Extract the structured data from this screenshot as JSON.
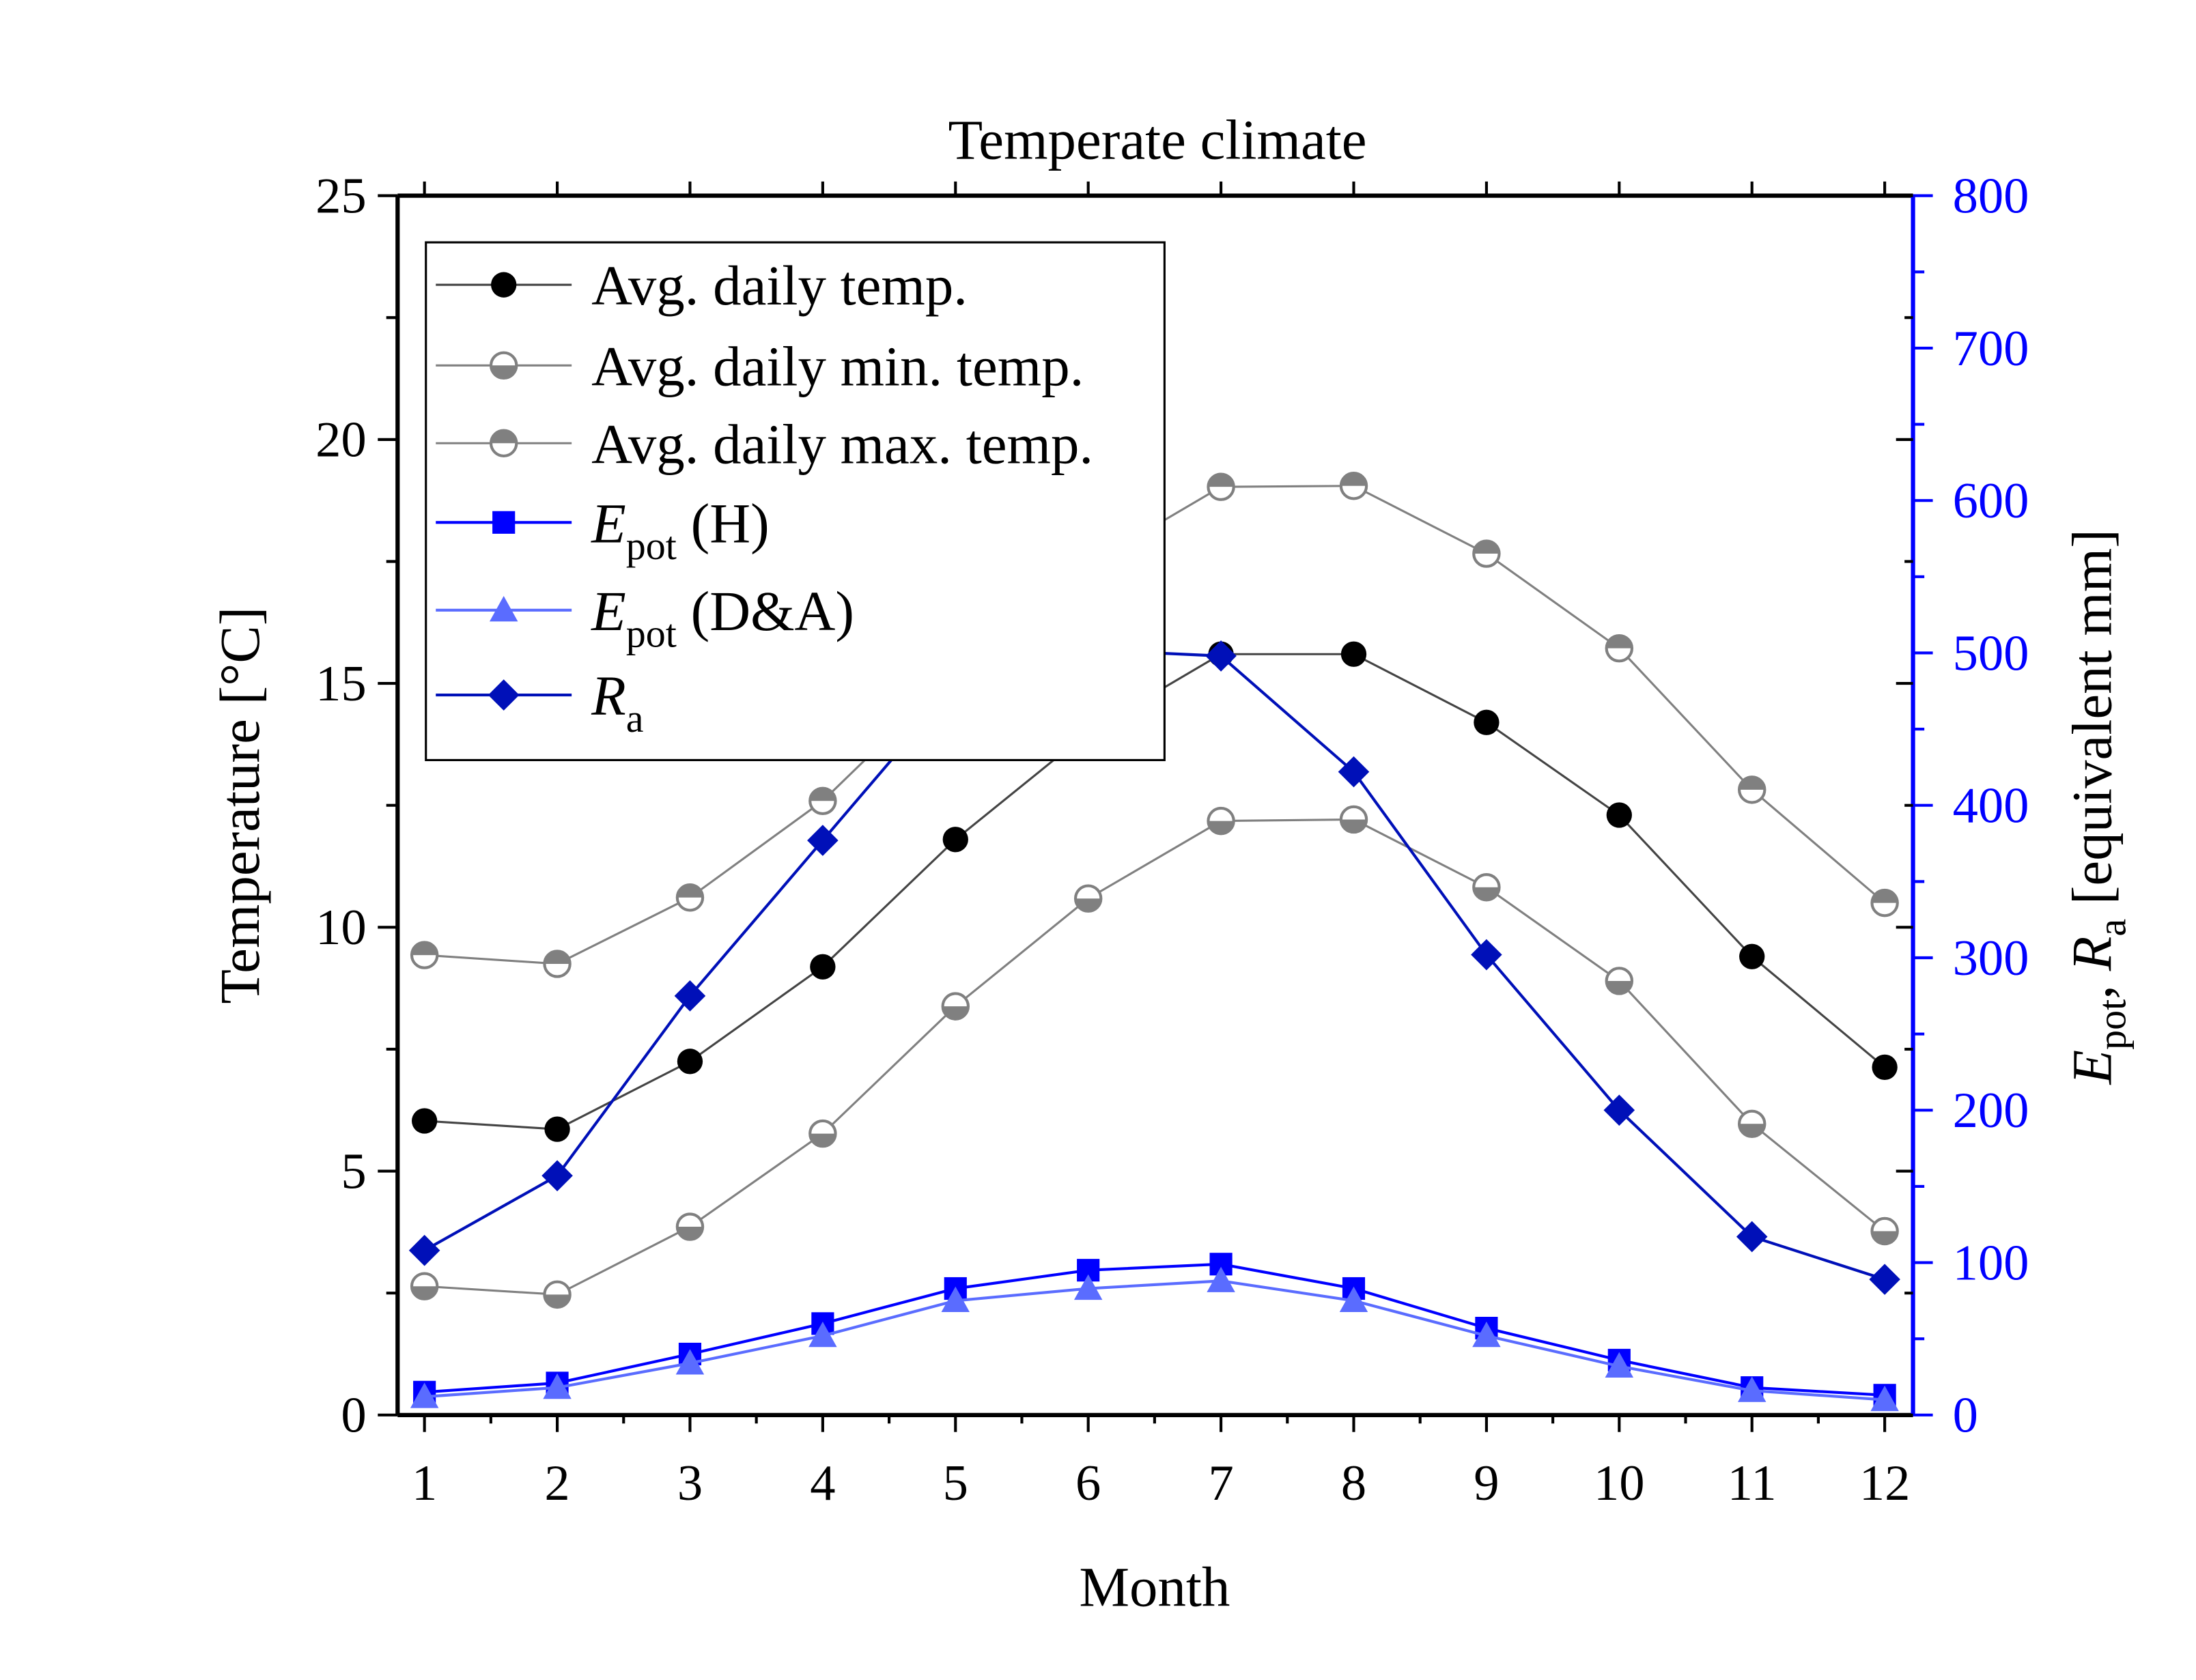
{
  "chart_data": {
    "type": "line",
    "title": "Temperate climate",
    "xlabel": "Month",
    "ylabel": "Temperature [°C]",
    "y2label": {
      "E": "E",
      "pot": "pot",
      "sep": ", ",
      "R": "R",
      "a": "a",
      "rest": " [equivalent mm]"
    },
    "x": [
      1,
      2,
      3,
      4,
      5,
      6,
      7,
      8,
      9,
      10,
      11,
      12
    ],
    "xlim": [
      0.8,
      12.2
    ],
    "ylim": [
      0,
      25
    ],
    "y2lim": [
      0,
      800
    ],
    "yticks": [
      0,
      5,
      10,
      15,
      20,
      25
    ],
    "y2ticks": [
      0,
      100,
      200,
      300,
      400,
      500,
      600,
      700,
      800
    ],
    "legend_position": "top-left",
    "colors": {
      "axis": "#000000",
      "right_axis": "#0000ff"
    },
    "series": [
      {
        "name": "Avg. daily temp.",
        "axis": "left",
        "marker": "circle-filled",
        "color": "#000000",
        "line": "#444444",
        "values": [
          6.03,
          5.86,
          7.25,
          9.19,
          11.8,
          14.0,
          15.6,
          15.6,
          14.2,
          12.3,
          9.4,
          7.13
        ]
      },
      {
        "name": "Avg. daily min. temp.",
        "axis": "left",
        "marker": "circle-half-bottom",
        "color": "#808080",
        "line": "#808080",
        "values": [
          2.64,
          2.47,
          3.86,
          5.77,
          8.38,
          10.59,
          12.18,
          12.21,
          10.82,
          8.9,
          5.97,
          3.77
        ]
      },
      {
        "name": "Avg. daily max. temp.",
        "axis": "left",
        "marker": "circle-half-top",
        "color": "#808080",
        "line": "#808080",
        "values": [
          9.43,
          9.25,
          10.61,
          12.59,
          15.23,
          17.43,
          19.03,
          19.05,
          17.66,
          15.72,
          12.82,
          10.5
        ]
      },
      {
        "name": "E",
        "sub": "pot",
        "suffix": " (H)",
        "axis": "right",
        "marker": "square",
        "color": "#0000ff",
        "line": "#0000ff",
        "values": [
          15,
          21,
          40,
          60,
          83,
          95,
          99,
          83,
          57,
          36,
          18,
          13
        ]
      },
      {
        "name": "E",
        "sub": "pot",
        "suffix": " (D&A)",
        "axis": "right",
        "marker": "triangle",
        "color": "#5a6cff",
        "line": "#5a6cff",
        "values": [
          12,
          18,
          34,
          52,
          75,
          83,
          88,
          75,
          52,
          32,
          16,
          10
        ]
      },
      {
        "name": "R",
        "sub": "a",
        "suffix": "",
        "axis": "right",
        "marker": "diamond",
        "color": "#0010b8",
        "line": "#0010b8",
        "values": [
          108,
          157,
          275,
          377,
          479,
          502,
          498,
          422,
          302,
          200,
          117,
          89
        ]
      }
    ]
  }
}
